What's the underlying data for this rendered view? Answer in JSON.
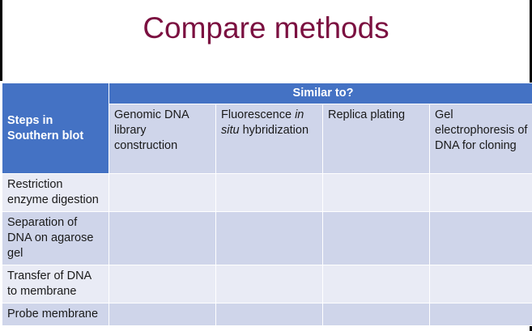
{
  "slide": {
    "title": "Compare methods"
  },
  "table": {
    "steps_header": "Steps in Southern blot",
    "similar_header": "Similar to?",
    "columns": [
      {
        "pre": "Genomic DNA library construction",
        "em": "",
        "post": ""
      },
      {
        "pre": "Fluorescence ",
        "em": "in situ",
        "post": " hybridization"
      },
      {
        "pre": "Replica plating",
        "em": "",
        "post": ""
      },
      {
        "pre": "Gel electrophoresis of DNA for cloning",
        "em": "",
        "post": ""
      }
    ],
    "rows": [
      "Restriction enzyme digestion",
      "Separation of DNA on agarose gel",
      "Transfer of DNA to membrane",
      "Probe membrane"
    ]
  },
  "colors": {
    "title": "#7b1040",
    "header_blue": "#4472c4",
    "cell_dark": "#cfd5ea",
    "cell_light": "#e9ebf5"
  }
}
